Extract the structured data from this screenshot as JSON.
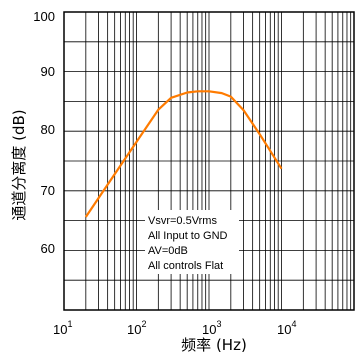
{
  "chart_data": {
    "type": "line",
    "xscale": "log",
    "xlim": [
      10,
      100000
    ],
    "ylim": [
      50,
      100
    ],
    "grid": true,
    "xlabel": "频率 (Hz)",
    "ylabel": "通道分离度 (dB)",
    "yticks": [
      "100",
      "90",
      "80",
      "70",
      "60"
    ],
    "xticks": [
      {
        "base": "10",
        "exp": "1"
      },
      {
        "base": "10",
        "exp": "2"
      },
      {
        "base": "10",
        "exp": "3"
      },
      {
        "base": "10",
        "exp": "4"
      }
    ],
    "annotation": [
      "Vsvr=0.5Vrms",
      "All Input to GND",
      "AV=0dB",
      "All controls Flat"
    ],
    "line_color": "#ff7b00",
    "series": [
      {
        "x": [
          20,
          30,
          50,
          100,
          200,
          300,
          500,
          700,
          1000,
          1500,
          2000,
          3000,
          5000,
          10000
        ],
        "y": [
          65.6,
          68.8,
          72.8,
          78.2,
          83.6,
          85.6,
          86.5,
          86.7,
          86.7,
          86.4,
          85.8,
          83.5,
          79.5,
          73.7
        ]
      }
    ]
  }
}
